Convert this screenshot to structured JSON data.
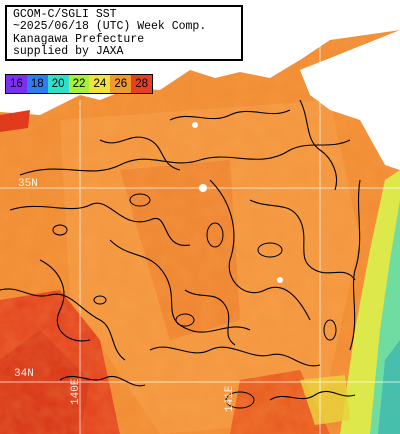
{
  "header": {
    "lines": [
      "GCOM-C/SGLI SST",
      "~2025/06/18 (UTC) Week Comp.",
      "Kanagawa Prefecture",
      "supplied by JAXA"
    ]
  },
  "legend": {
    "items": [
      {
        "label": "16",
        "color": "#7b2ff0"
      },
      {
        "label": "18",
        "color": "#2e7df0"
      },
      {
        "label": "20",
        "color": "#2ee0c8"
      },
      {
        "label": "22",
        "color": "#a6f03a"
      },
      {
        "label": "24",
        "color": "#f0e23a"
      },
      {
        "label": "26",
        "color": "#f09a2a"
      },
      {
        "label": "28",
        "color": "#e8401e"
      }
    ]
  },
  "grid": {
    "lat_labels": [
      "35N",
      "34N"
    ],
    "lon_labels": [
      "140E",
      "141E"
    ]
  },
  "colors": {
    "land": "#ffffff",
    "warmest": "#e23a1c",
    "warm": "#ef7a26",
    "mid": "#f6a24a",
    "coastal_yellow": "#dde84a",
    "coastal_green": "#6fdca0",
    "gridline": "#ffffff",
    "contour": "#000000"
  }
}
